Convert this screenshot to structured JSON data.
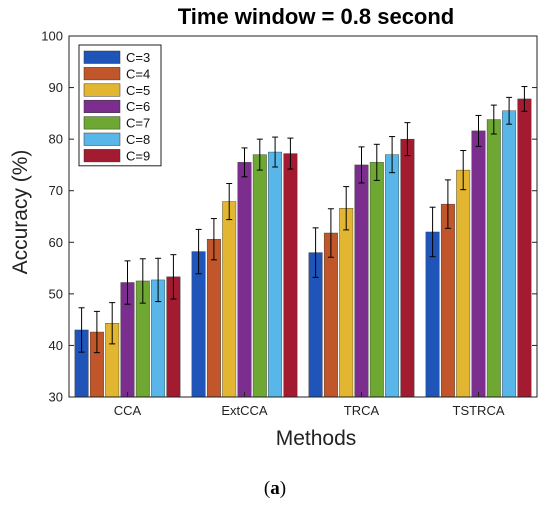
{
  "chart_data": {
    "type": "bar",
    "title": "Time window = 0.8 second",
    "xlabel": "Methods",
    "ylabel": "Accuracy (%)",
    "ylim": [
      30,
      100
    ],
    "yticks": [
      30,
      40,
      50,
      60,
      70,
      80,
      90,
      100
    ],
    "categories": [
      "CCA",
      "ExtCCA",
      "TRCA",
      "TSTRCA"
    ],
    "legend_position": "top-left",
    "grid": false,
    "error_bars": true,
    "series": [
      {
        "name": "C=3",
        "color": "#1f55b8",
        "values": [
          43.0,
          58.2,
          58.0,
          62.0
        ],
        "errors": [
          4.3,
          4.3,
          4.8,
          4.8
        ]
      },
      {
        "name": "C=4",
        "color": "#c0562a",
        "values": [
          42.6,
          60.6,
          61.8,
          67.4
        ],
        "errors": [
          4.0,
          4.0,
          4.7,
          4.7
        ]
      },
      {
        "name": "C=5",
        "color": "#e3b632",
        "values": [
          44.3,
          67.9,
          66.6,
          74.0
        ],
        "errors": [
          4.0,
          3.5,
          4.2,
          3.8
        ]
      },
      {
        "name": "C=6",
        "color": "#7b2e8d",
        "values": [
          52.2,
          75.5,
          75.0,
          81.6
        ],
        "errors": [
          4.2,
          2.8,
          3.5,
          3.0
        ]
      },
      {
        "name": "C=7",
        "color": "#6ea832",
        "values": [
          52.5,
          77.0,
          75.5,
          83.8
        ],
        "errors": [
          4.3,
          3.0,
          3.5,
          2.8
        ]
      },
      {
        "name": "C=8",
        "color": "#58b7e8",
        "values": [
          52.7,
          77.5,
          77.0,
          85.5
        ],
        "errors": [
          4.2,
          2.9,
          3.5,
          2.6
        ]
      },
      {
        "name": "C=9",
        "color": "#a31b30",
        "values": [
          53.3,
          77.2,
          80.0,
          87.8
        ],
        "errors": [
          4.3,
          3.0,
          3.2,
          2.4
        ]
      }
    ]
  },
  "caption": {
    "open": "(",
    "letter": "a",
    "close": ")"
  }
}
